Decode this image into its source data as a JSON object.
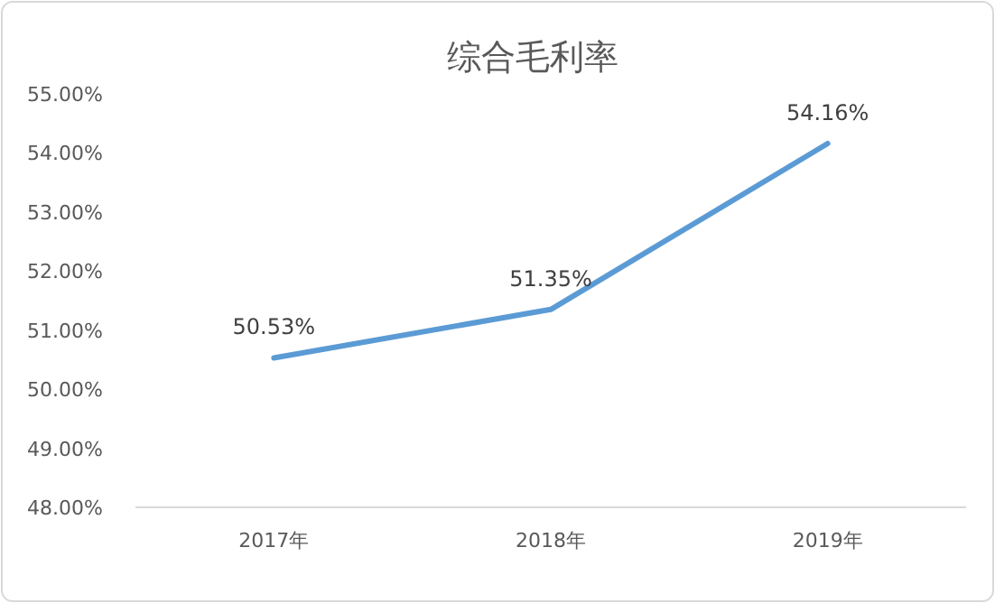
{
  "chart_data": {
    "type": "line",
    "title": "综合毛利率",
    "categories": [
      "2017年",
      "2018年",
      "2019年"
    ],
    "series": [
      {
        "color": "#5b9bd5",
        "values": [
          50.53,
          51.35,
          54.16
        ],
        "value_labels": [
          "50.53%",
          "51.35%",
          "54.16%"
        ]
      }
    ],
    "ylim": [
      48,
      55
    ],
    "yticks": [
      {
        "value": 48,
        "label": "48.00%"
      },
      {
        "value": 49,
        "label": "49.00%"
      },
      {
        "value": 50,
        "label": "50.00%"
      },
      {
        "value": 51,
        "label": "51.00%"
      },
      {
        "value": 52,
        "label": "52.00%"
      },
      {
        "value": 53,
        "label": "53.00%"
      },
      {
        "value": 54,
        "label": "54.00%"
      },
      {
        "value": 55,
        "label": "55.00%"
      }
    ],
    "grid": false,
    "marker": "none",
    "line_style": "solid"
  }
}
